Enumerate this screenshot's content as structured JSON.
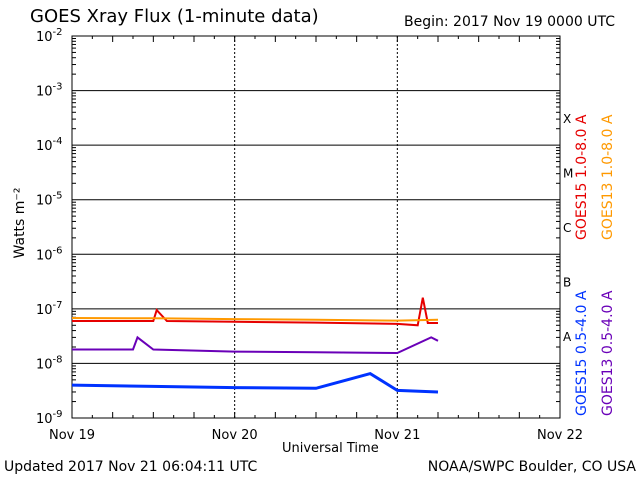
{
  "header": {
    "title": "GOES Xray Flux (1-minute data)",
    "begin": "Begin:  2017 Nov 19 0000 UTC"
  },
  "footer": {
    "updated": "Updated 2017 Nov 21 06:04:11 UTC",
    "credit": "NOAA/SWPC Boulder, CO USA"
  },
  "flare_classes": [
    "X",
    "M",
    "C",
    "B",
    "A"
  ],
  "legend_right": [
    {
      "label": "GOES15 1.0-8.0 A",
      "color": "#e60000"
    },
    {
      "label": "GOES13 1.0-8.0 A",
      "color": "#ff9900"
    }
  ],
  "legend_right_bottom": [
    {
      "label": "GOES15 0.5-4.0 A",
      "color": "#0033ff"
    },
    {
      "label": "GOES13 0.5-4.0 A",
      "color": "#6a00b8"
    }
  ],
  "chart_data": {
    "type": "line",
    "title": "GOES Xray Flux (1-minute data)",
    "xlabel": "Universal Time",
    "ylabel": "Watts m⁻²",
    "yscale": "log",
    "ylim": [
      1e-09,
      0.01
    ],
    "y_ticks": [
      {
        "base": "10",
        "exp": "-2",
        "value": 0.01
      },
      {
        "base": "10",
        "exp": "-3",
        "value": 0.001
      },
      {
        "base": "10",
        "exp": "-4",
        "value": 0.0001
      },
      {
        "base": "10",
        "exp": "-5",
        "value": 1e-05
      },
      {
        "base": "10",
        "exp": "-6",
        "value": 1e-06
      },
      {
        "base": "10",
        "exp": "-7",
        "value": 1e-07
      },
      {
        "base": "10",
        "exp": "-8",
        "value": 1e-08
      },
      {
        "base": "10",
        "exp": "-9",
        "value": 1e-09
      }
    ],
    "x_ticks": [
      "Nov 19",
      "Nov 20",
      "Nov 21",
      "Nov 22"
    ],
    "x_start": "2017-11-19 00:00",
    "x_end": "2017-11-22 00:00",
    "data_end": "2017-11-21 06:04",
    "grid": true,
    "series": [
      {
        "name": "GOES15 1.0-8.0 A",
        "color": "#e60000",
        "x": [
          "2017-11-19 00:00",
          "2017-11-19 12:00",
          "2017-11-19 12:30",
          "2017-11-19 14:00",
          "2017-11-20 00:00",
          "2017-11-20 12:00",
          "2017-11-21 00:00",
          "2017-11-21 03:00",
          "2017-11-21 03:45",
          "2017-11-21 04:30",
          "2017-11-21 06:00"
        ],
        "y": [
          6e-08,
          6e-08,
          9.5e-08,
          6e-08,
          5.8e-08,
          5.6e-08,
          5.3e-08,
          5e-08,
          1.6e-07,
          5.5e-08,
          5.5e-08
        ]
      },
      {
        "name": "GOES13 1.0-8.0 A",
        "color": "#ff9900",
        "x": [
          "2017-11-19 00:00",
          "2017-11-19 12:00",
          "2017-11-20 00:00",
          "2017-11-20 12:00",
          "2017-11-21 00:00",
          "2017-11-21 06:00"
        ],
        "y": [
          6.8e-08,
          6.7e-08,
          6.5e-08,
          6.3e-08,
          6.1e-08,
          6.3e-08
        ]
      },
      {
        "name": "GOES15 0.5-4.0 A",
        "color": "#0033ff",
        "x": [
          "2017-11-19 00:00",
          "2017-11-19 12:00",
          "2017-11-20 00:00",
          "2017-11-20 12:00",
          "2017-11-20 20:00",
          "2017-11-21 00:00",
          "2017-11-21 06:00"
        ],
        "y": [
          4e-09,
          3.8e-09,
          3.6e-09,
          3.5e-09,
          6.5e-09,
          3.2e-09,
          3e-09
        ]
      },
      {
        "name": "GOES13 0.5-4.0 A",
        "color": "#6a00b8",
        "x": [
          "2017-11-19 00:00",
          "2017-11-19 09:00",
          "2017-11-19 09:40",
          "2017-11-19 12:00",
          "2017-11-20 00:00",
          "2017-11-20 12:00",
          "2017-11-21 00:00",
          "2017-11-21 05:00",
          "2017-11-21 06:00"
        ],
        "y": [
          1.8e-08,
          1.8e-08,
          3e-08,
          1.8e-08,
          1.65e-08,
          1.6e-08,
          1.55e-08,
          3e-08,
          2.6e-08
        ]
      }
    ]
  }
}
